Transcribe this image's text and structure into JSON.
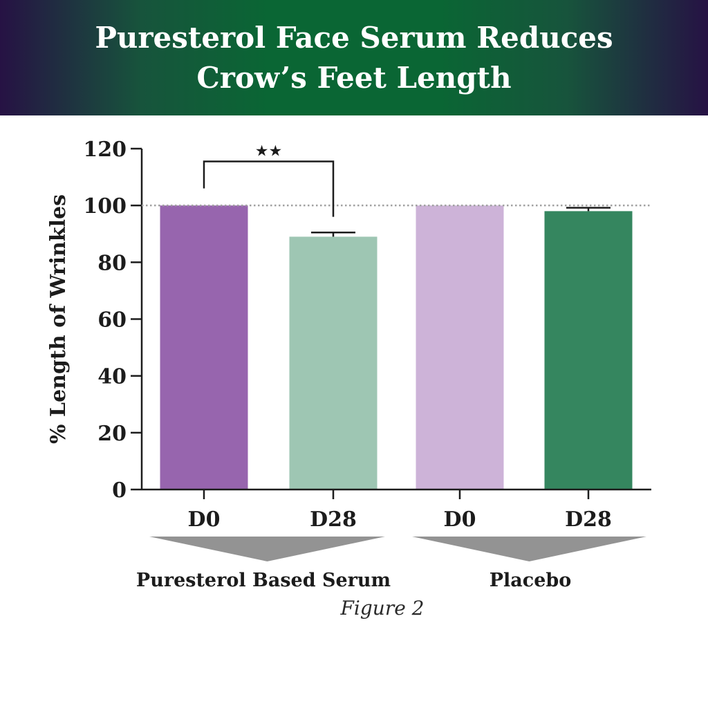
{
  "title": "Puresterol Face Serum Reduces Crow’s Feet Length",
  "caption": "Figure 2",
  "chart_data": {
    "type": "bar",
    "title": "Puresterol Face Serum Reduces Crow’s Feet Length",
    "ylabel": "% Length of Wrinkles",
    "xlabel": "",
    "ylim": [
      0,
      120
    ],
    "yticks": [
      0,
      20,
      40,
      60,
      80,
      100,
      120
    ],
    "grid": false,
    "reference_line": {
      "value": 100,
      "style": "dotted",
      "color": "#a0a0a0"
    },
    "categories": [
      "D0",
      "D28",
      "D0",
      "D28"
    ],
    "values": [
      100,
      89,
      100,
      98
    ],
    "error": [
      0,
      1.5,
      0,
      1.2
    ],
    "colors": [
      "#9765ae",
      "#9ec6b3",
      "#cdb3d8",
      "#35865f"
    ],
    "groups": [
      {
        "label": "Puresterol Based Serum",
        "categories": [
          0,
          1
        ]
      },
      {
        "label": "Placebo",
        "categories": [
          2,
          3
        ]
      }
    ],
    "significance": {
      "between": [
        0,
        1
      ],
      "label": "★★"
    }
  }
}
